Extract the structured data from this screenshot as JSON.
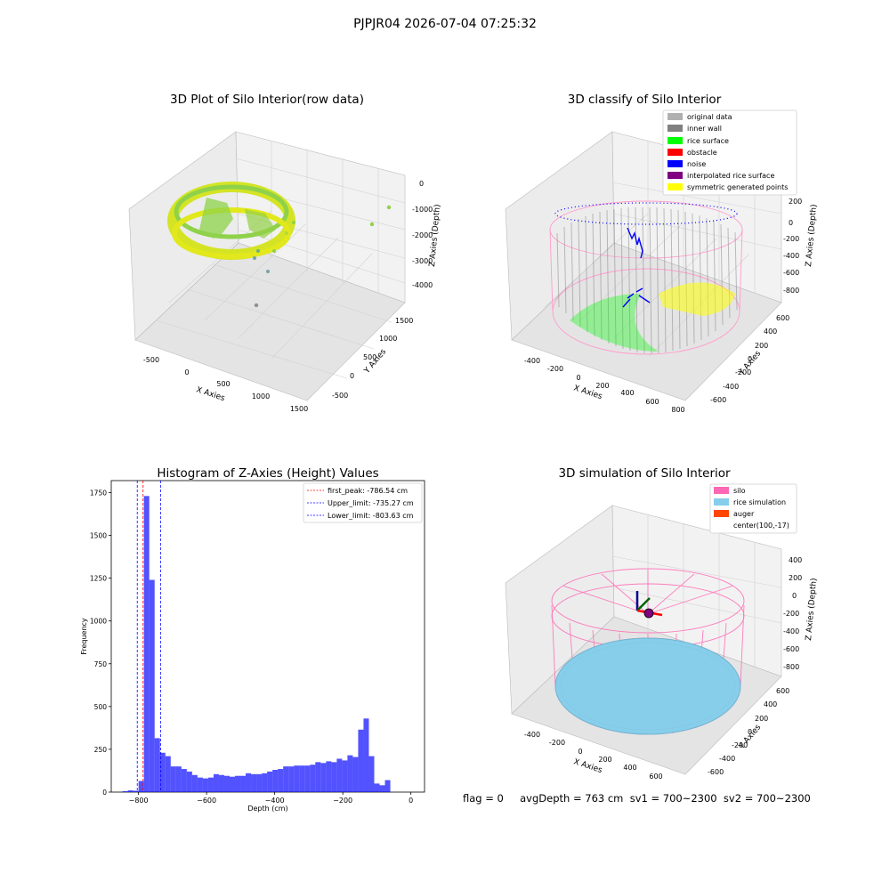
{
  "figure": {
    "suptitle": "PJPJR04 2026-07-04 07:25:32",
    "footer": "flag = 0     avgDepth = 763 cm  sv1 = 700~2300  sv2 = 700~2300"
  },
  "panels": {
    "raw": {
      "title": "3D Plot of Silo Interior(row data)",
      "xlabel": "X Axies",
      "ylabel": "Y Axies",
      "zlabel": "Z Axies (Depth)",
      "xticks": [
        "-500",
        "0",
        "500",
        "1000",
        "1500"
      ],
      "yticks": [
        "-500",
        "0",
        "500",
        "1000",
        "1500"
      ],
      "zticks": [
        "0",
        "-1000",
        "-2000",
        "-3000",
        "-4000"
      ]
    },
    "classify": {
      "title": "3D classify of Silo Interior",
      "xlabel": "X Axies",
      "ylabel": "Y Axies",
      "zlabel": "Z Axies (Depth)",
      "xticks": [
        "-400",
        "-200",
        "0",
        "200",
        "400",
        "600",
        "800"
      ],
      "yticks": [
        "-600",
        "-400",
        "-200",
        "0",
        "200",
        "400",
        "600"
      ],
      "zticks": [
        "200",
        "0",
        "-200",
        "-400",
        "-600",
        "-800"
      ],
      "legend": [
        {
          "label": "original data",
          "color": "#b0b0b0"
        },
        {
          "label": "inner wall",
          "color": "#808080"
        },
        {
          "label": "rice surface",
          "color": "#00ff00"
        },
        {
          "label": "obstacle",
          "color": "#ff0000"
        },
        {
          "label": "noise",
          "color": "#0000ff"
        },
        {
          "label": "interpolated rice surface",
          "color": "#800080"
        },
        {
          "label": "symmetric generated points",
          "color": "#ffff00"
        }
      ]
    },
    "simulation": {
      "title": "3D simulation of Silo Interior",
      "xlabel": "X Axies",
      "ylabel": "Y Axies",
      "zlabel": "Z Axies (Depth)",
      "xticks": [
        "-400",
        "-200",
        "0",
        "200",
        "400",
        "600"
      ],
      "yticks": [
        "-600",
        "-400",
        "-200",
        "0",
        "200",
        "400",
        "600"
      ],
      "zticks": [
        "400",
        "200",
        "0",
        "-200",
        "-400",
        "-600",
        "-800"
      ],
      "legend": [
        {
          "label": "silo",
          "color": "#ff69b4"
        },
        {
          "label": "rice simulation",
          "color": "#87ceeb"
        },
        {
          "label": "auger",
          "color": "#ff4500"
        },
        {
          "label": "center(100,-17)",
          "color": ""
        }
      ]
    }
  },
  "chart_data": {
    "type": "bar",
    "title": "Histogram of Z-Axies (Height) Values",
    "xlabel": "Depth (cm)",
    "ylabel": "Frequency",
    "xlim": [
      -880,
      40
    ],
    "ylim": [
      0,
      1820
    ],
    "xticks": [
      -800,
      -600,
      -400,
      -200,
      0
    ],
    "yticks": [
      0,
      250,
      500,
      750,
      1000,
      1250,
      1500,
      1750
    ],
    "bin_start": -847.0,
    "bin_width": 15.73,
    "values": [
      5,
      10,
      8,
      65,
      1730,
      1240,
      315,
      230,
      210,
      150,
      150,
      135,
      120,
      100,
      85,
      80,
      85,
      105,
      100,
      95,
      90,
      95,
      95,
      110,
      105,
      105,
      110,
      120,
      130,
      135,
      150,
      150,
      155,
      155,
      155,
      160,
      175,
      170,
      180,
      175,
      195,
      185,
      215,
      205,
      365,
      430,
      210,
      50,
      40,
      70
    ],
    "bar_color": "#0000ff",
    "vlines": [
      {
        "value": -786.54,
        "label": "first_peak: -786.54 cm",
        "color": "#ff0000"
      },
      {
        "value": -735.27,
        "label": "Upper_limit: -735.27 cm",
        "color": "#0000ff"
      },
      {
        "value": -803.63,
        "label": "Lower_limit: -803.63 cm",
        "color": "#0000ff"
      }
    ]
  }
}
